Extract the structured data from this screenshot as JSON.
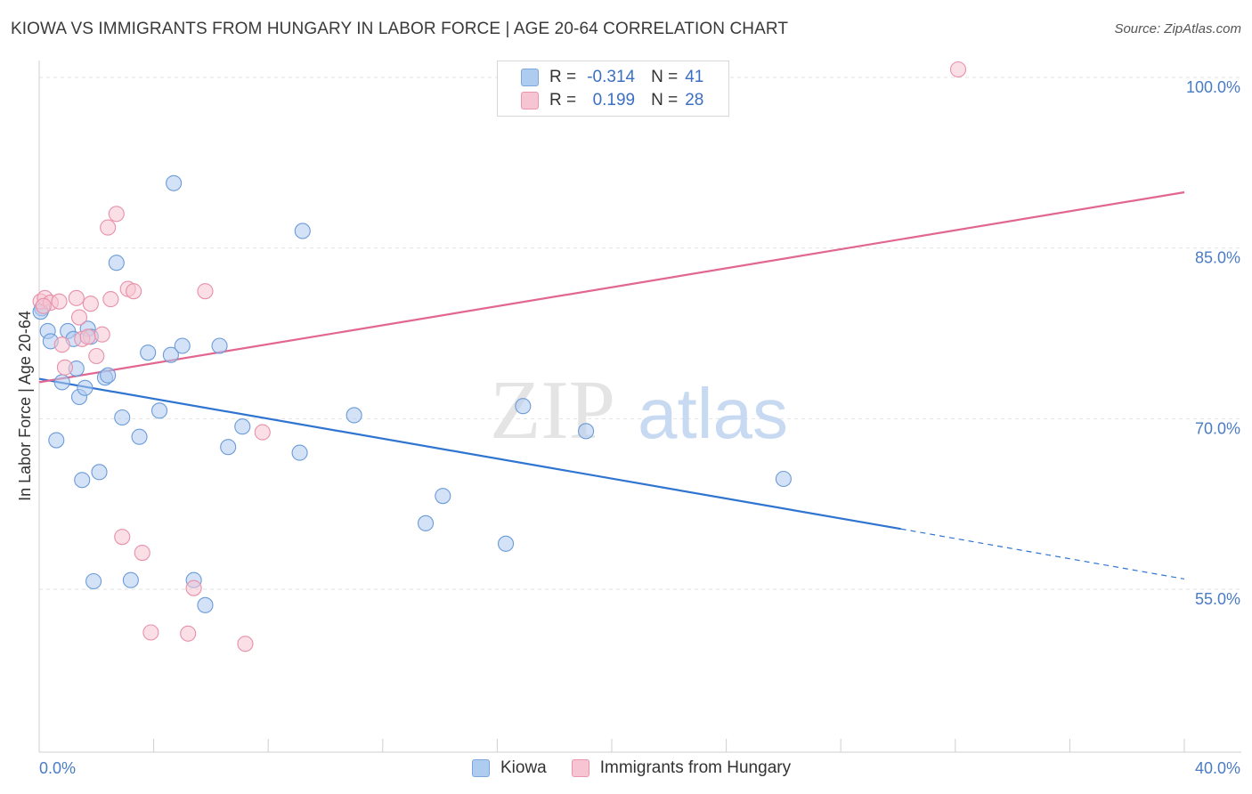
{
  "title": "KIOWA VS IMMIGRANTS FROM HUNGARY IN LABOR FORCE | AGE 20-64 CORRELATION CHART",
  "source": "Source: ZipAtlas.com",
  "watermark": {
    "zip": "ZIP",
    "atlas": "atlas"
  },
  "legend": {
    "rows": [
      {
        "r_label": "R =",
        "r_value": "-0.314",
        "n_label": "N =",
        "n_value": "41",
        "color": "#aecbf0",
        "border": "#7da6dc"
      },
      {
        "r_label": "R =",
        "r_value": "0.199",
        "n_label": "N =",
        "n_value": "28",
        "color": "#f6c4d2",
        "border": "#ea94ad"
      }
    ]
  },
  "bottom_legend": [
    "Kiowa",
    "Immigrants from Hungary"
  ],
  "chart_data": {
    "type": "scatter",
    "ylabel": "In Labor Force | Age 20-64",
    "xlim": [
      0,
      40
    ],
    "ylim": [
      40,
      102
    ],
    "x_tick_labels": [
      "0.0%",
      "40.0%"
    ],
    "y_ticks": [
      55,
      70,
      85,
      100
    ],
    "y_tick_labels": [
      "55.0%",
      "70.0%",
      "85.0%",
      "100.0%"
    ],
    "grid": true,
    "series": [
      {
        "name": "Kiowa",
        "color": "#aecbf0",
        "stroke": "#6b9bd8",
        "line_color": "#2e74d0",
        "points": [
          [
            0.1,
            79.0
          ],
          [
            0.3,
            77.0
          ],
          [
            0.4,
            76.1
          ],
          [
            0.6,
            67.4
          ],
          [
            0.8,
            72.5
          ],
          [
            1.0,
            77.0
          ],
          [
            1.2,
            76.3
          ],
          [
            1.3,
            73.7
          ],
          [
            1.4,
            71.2
          ],
          [
            1.5,
            63.9
          ],
          [
            1.6,
            72.0
          ],
          [
            1.7,
            77.2
          ],
          [
            1.8,
            76.5
          ],
          [
            1.9,
            55.0
          ],
          [
            2.1,
            64.6
          ],
          [
            2.3,
            72.9
          ],
          [
            2.4,
            73.1
          ],
          [
            2.7,
            83.0
          ],
          [
            2.9,
            69.4
          ],
          [
            3.2,
            55.1
          ],
          [
            3.5,
            67.7
          ],
          [
            3.8,
            75.1
          ],
          [
            4.2,
            70.0
          ],
          [
            4.6,
            74.9
          ],
          [
            4.7,
            90.0
          ],
          [
            5.0,
            75.7
          ],
          [
            5.4,
            55.1
          ],
          [
            5.8,
            52.9
          ],
          [
            6.3,
            75.7
          ],
          [
            6.6,
            66.8
          ],
          [
            7.1,
            68.6
          ],
          [
            9.1,
            66.3
          ],
          [
            9.2,
            85.8
          ],
          [
            11.0,
            69.6
          ],
          [
            13.5,
            60.1
          ],
          [
            14.1,
            62.5
          ],
          [
            16.3,
            58.3
          ],
          [
            16.9,
            70.4
          ],
          [
            19.1,
            68.2
          ],
          [
            26.0,
            64.0
          ],
          [
            0.05,
            78.7
          ]
        ],
        "trend": {
          "x0": 0,
          "y0": 72.8,
          "x1": 30.1,
          "y1": 59.6,
          "dash_x1": 40,
          "dash_y1": 55.2
        }
      },
      {
        "name": "Immigrants from Hungary",
        "color": "#f6c4d2",
        "stroke": "#e890aa",
        "line_color": "#e2668f",
        "points": [
          [
            0.05,
            79.6
          ],
          [
            0.2,
            79.9
          ],
          [
            0.4,
            79.5
          ],
          [
            0.7,
            79.6
          ],
          [
            0.8,
            75.8
          ],
          [
            0.9,
            73.8
          ],
          [
            1.3,
            79.9
          ],
          [
            1.4,
            78.2
          ],
          [
            1.5,
            76.3
          ],
          [
            1.7,
            76.5
          ],
          [
            1.8,
            79.4
          ],
          [
            2.0,
            74.8
          ],
          [
            2.2,
            76.7
          ],
          [
            2.4,
            86.1
          ],
          [
            2.5,
            79.8
          ],
          [
            2.7,
            87.3
          ],
          [
            2.9,
            58.9
          ],
          [
            3.1,
            80.7
          ],
          [
            3.3,
            80.5
          ],
          [
            3.6,
            57.5
          ],
          [
            3.9,
            50.5
          ],
          [
            5.2,
            50.4
          ],
          [
            5.4,
            54.4
          ],
          [
            5.8,
            80.5
          ],
          [
            7.2,
            49.5
          ],
          [
            7.8,
            68.1
          ],
          [
            32.1,
            100.0
          ],
          [
            0.15,
            79.2
          ]
        ],
        "trend": {
          "x0": 0,
          "y0": 72.5,
          "x1": 40,
          "y1": 89.2
        }
      }
    ]
  }
}
